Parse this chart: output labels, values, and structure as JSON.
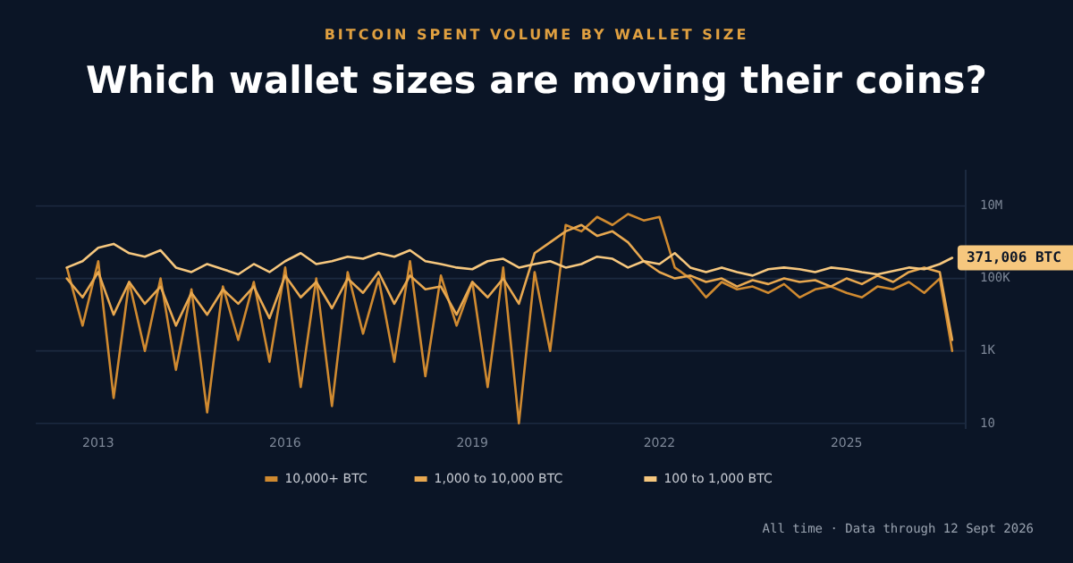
{
  "chart_data": {
    "type": "line",
    "subtitle": "BITCOIN SPENT VOLUME BY WALLET SIZE",
    "title": "Which wallet sizes are moving their coins?",
    "x": [
      "2012-07",
      "2012-10",
      "2013-01",
      "2013-04",
      "2013-07",
      "2013-10",
      "2014-01",
      "2014-04",
      "2014-07",
      "2014-10",
      "2015-01",
      "2015-04",
      "2015-07",
      "2015-10",
      "2016-01",
      "2016-04",
      "2016-07",
      "2016-10",
      "2017-01",
      "2017-04",
      "2017-07",
      "2017-10",
      "2018-01",
      "2018-04",
      "2018-07",
      "2018-10",
      "2019-01",
      "2019-04",
      "2019-07",
      "2019-10",
      "2020-01",
      "2020-04",
      "2020-07",
      "2020-10",
      "2021-01",
      "2021-04",
      "2021-07",
      "2021-10",
      "2022-01",
      "2022-04",
      "2022-07",
      "2022-10",
      "2023-01",
      "2023-04",
      "2023-07",
      "2023-10",
      "2024-01",
      "2024-04",
      "2024-07",
      "2024-10",
      "2025-01",
      "2025-04",
      "2025-07",
      "2025-10",
      "2026-01",
      "2026-04",
      "2026-07",
      "2026-09-12"
    ],
    "series": [
      {
        "name": "10,000+ BTC",
        "color": "#d08a30",
        "values": [
          200000,
          5000,
          300000,
          50,
          80000,
          1000,
          100000,
          300,
          50000,
          20,
          60000,
          2000,
          80000,
          500,
          200000,
          100,
          100000,
          30,
          150000,
          3000,
          100000,
          500,
          300000,
          200,
          120000,
          5000,
          80000,
          100,
          200000,
          10,
          150000,
          1000,
          3000000,
          2000000,
          5000000,
          3000000,
          6000000,
          4000000,
          5000000,
          200000,
          100000,
          30000,
          80000,
          50000,
          60000,
          40000,
          70000,
          30000,
          50000,
          60000,
          40000,
          30000,
          60000,
          50000,
          80000,
          40000,
          100000,
          1000
        ]
      },
      {
        "name": "1,000 to 10,000 BTC",
        "color": "#e8a850",
        "values": [
          100000,
          30000,
          150000,
          10000,
          80000,
          20000,
          60000,
          5000,
          40000,
          10000,
          50000,
          20000,
          60000,
          8000,
          120000,
          30000,
          80000,
          15000,
          100000,
          40000,
          150000,
          20000,
          120000,
          50000,
          60000,
          10000,
          80000,
          30000,
          100000,
          20000,
          500000,
          1000000,
          2000000,
          3000000,
          1500000,
          2000000,
          1000000,
          300000,
          150000,
          100000,
          120000,
          80000,
          100000,
          60000,
          90000,
          70000,
          100000,
          80000,
          90000,
          60000,
          100000,
          70000,
          120000,
          80000,
          150000,
          200000,
          150000,
          2000
        ]
      },
      {
        "name": "100 to 1,000 BTC",
        "color": "#f6c77e",
        "values": [
          200000,
          300000,
          700000,
          900000,
          500000,
          400000,
          600000,
          200000,
          150000,
          250000,
          180000,
          130000,
          250000,
          150000,
          300000,
          500000,
          250000,
          300000,
          400000,
          350000,
          500000,
          400000,
          600000,
          300000,
          250000,
          200000,
          180000,
          300000,
          350000,
          200000,
          250000,
          300000,
          200000,
          250000,
          400000,
          350000,
          200000,
          300000,
          250000,
          500000,
          200000,
          150000,
          200000,
          150000,
          120000,
          180000,
          200000,
          180000,
          150000,
          200000,
          180000,
          150000,
          130000,
          160000,
          200000,
          180000,
          250000,
          371006
        ]
      }
    ],
    "log": "y",
    "ylim": [
      7,
      100000000
    ],
    "yticks": [
      {
        "value": 10,
        "label": "10"
      },
      {
        "value": 1000,
        "label": "1K"
      },
      {
        "value": 100000,
        "label": "100K"
      },
      {
        "value": 10000000,
        "label": "10M"
      }
    ],
    "xlim": [
      "2012-01-01",
      "2026-11-30"
    ],
    "xticks": [
      {
        "value": "2013-01-01",
        "label": "2013"
      },
      {
        "value": "2016-01-01",
        "label": "2016"
      },
      {
        "value": "2019-01-01",
        "label": "2019"
      },
      {
        "value": "2022-01-01",
        "label": "2022"
      },
      {
        "value": "2025-01-01",
        "label": "2025"
      }
    ],
    "grid": "y",
    "legend": "bottom",
    "line_style": "solid",
    "annotations": [
      {
        "text": "371,006 BTC",
        "x": "2026-09-12",
        "y": 371006
      },
      "All time · Data through 12 Sept 2026"
    ]
  }
}
